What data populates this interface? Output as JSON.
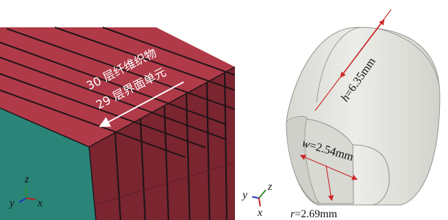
{
  "left_panel": {
    "label_layers_fiber": "30 层纤维织物",
    "label_layers_interface": "29 层界面单元",
    "colors": {
      "top_face": "#b03a48",
      "side_face": "#7a2530",
      "front_face": "#2a8578",
      "layer_line": "#1e1418"
    },
    "triad": {
      "axis_z": "z",
      "axis_y": "y",
      "axis_x": "x"
    }
  },
  "right_panel": {
    "label_h_var": "h",
    "label_h_val": "=6.35mm",
    "label_w_var": "w",
    "label_w_val": "=2.54mm",
    "label_r_var": "r",
    "label_r_val": "=2.69mm",
    "colors": {
      "body": "#e3e4df",
      "body_shadow": "#c9cac3",
      "dimension_line": "#cc2a2a"
    },
    "triad": {
      "axis_z": "z",
      "axis_y": "y",
      "axis_x": "x"
    }
  }
}
